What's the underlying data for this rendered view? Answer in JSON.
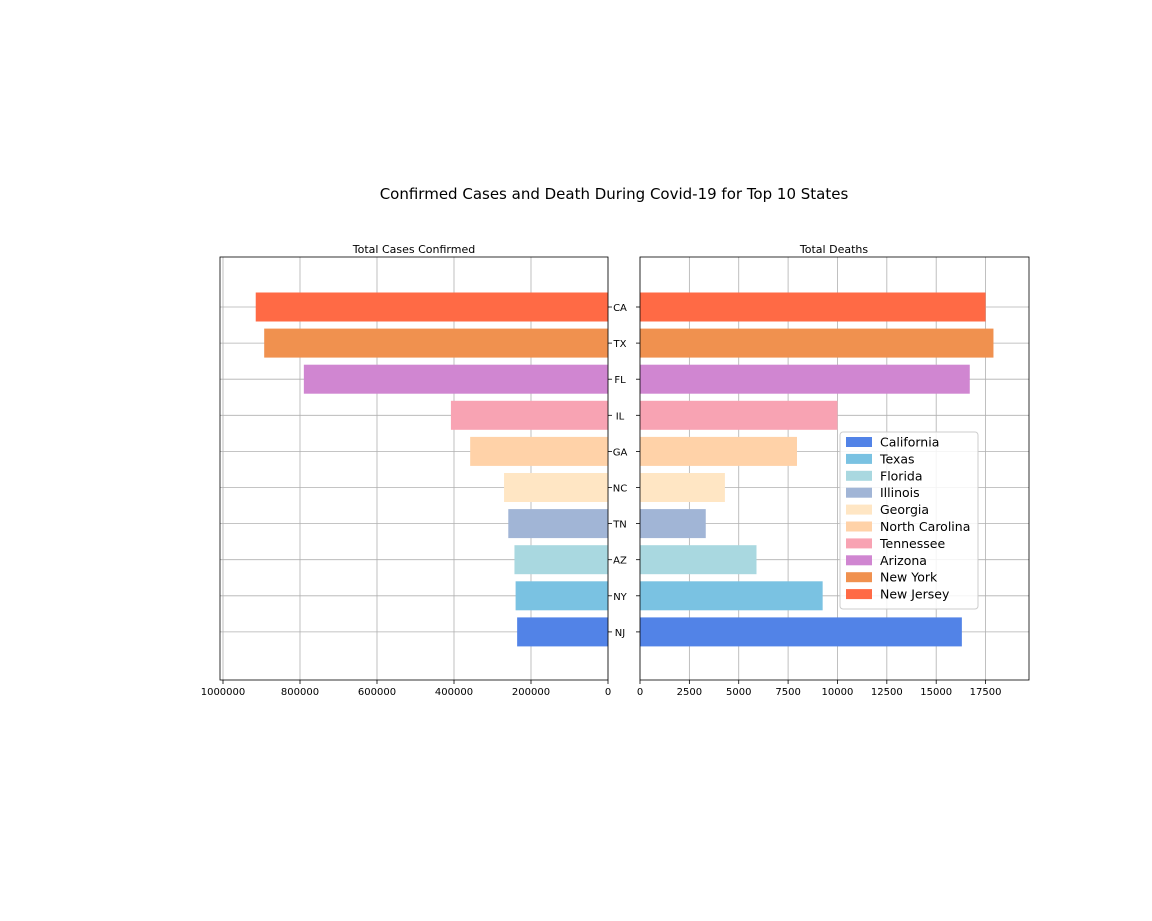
{
  "chart_data": {
    "type": "bar",
    "orientation": "horizontal",
    "title": "Confirmed Cases and Death During Covid-19 for Top 10 States",
    "categories": [
      "CA",
      "TX",
      "FL",
      "IL",
      "GA",
      "NC",
      "TN",
      "AZ",
      "NY",
      "NJ"
    ],
    "bar_colors": [
      "#FF6A45",
      "#F0914F",
      "#D086D1",
      "#F8A3B3",
      "#FFD2A8",
      "#FFE6C4",
      "#A1B5D6",
      "#A9D8E0",
      "#7AC2E2",
      "#5283E7"
    ],
    "panels": [
      {
        "title": "Total Cases Confirmed",
        "series_name": "Total Cases Confirmed",
        "values": [
          915000,
          893000,
          790000,
          408000,
          358000,
          270000,
          259000,
          243000,
          240000,
          236000
        ],
        "xlim": [
          1000000,
          0
        ],
        "xticks": [
          1000000,
          800000,
          600000,
          400000,
          200000,
          0
        ],
        "xtick_labels": [
          "1000000",
          "800000",
          "600000",
          "400000",
          "200000",
          "0"
        ],
        "inverted": true
      },
      {
        "title": "Total Deaths",
        "series_name": "Total Deaths",
        "values": [
          17500,
          17900,
          16700,
          10000,
          7950,
          4300,
          3330,
          5900,
          9250,
          16300
        ],
        "xlim": [
          0,
          19700
        ],
        "xticks": [
          0,
          2500,
          5000,
          7500,
          10000,
          12500,
          15000,
          17500
        ],
        "xtick_labels": [
          "0",
          "2500",
          "5000",
          "7500",
          "10000",
          "12500",
          "15000",
          "17500"
        ],
        "inverted": false
      }
    ],
    "legend": {
      "position": "center-right",
      "entries": [
        {
          "label": "California",
          "color": "#5283E7"
        },
        {
          "label": "Texas",
          "color": "#7AC2E2"
        },
        {
          "label": "Florida",
          "color": "#A9D8E0"
        },
        {
          "label": "Illinois",
          "color": "#A1B5D6"
        },
        {
          "label": "Georgia",
          "color": "#FFE6C4"
        },
        {
          "label": "North Carolina",
          "color": "#FFD2A8"
        },
        {
          "label": "Tennessee",
          "color": "#F8A3B3"
        },
        {
          "label": "Arizona",
          "color": "#D086D1"
        },
        {
          "label": "New York",
          "color": "#F0914F"
        },
        {
          "label": "New Jersey",
          "color": "#FF6A45"
        }
      ]
    },
    "grid": true
  }
}
